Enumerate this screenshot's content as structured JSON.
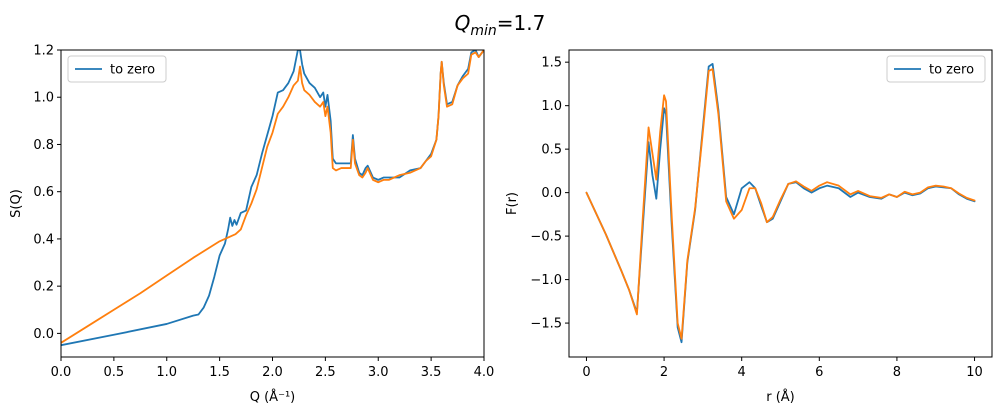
{
  "figure": {
    "suptitle_base": "Q",
    "suptitle_sub": "min",
    "suptitle_rest": "=1.7"
  },
  "colors": {
    "blue": "#1f77b4",
    "orange": "#ff7f0e",
    "axis": "#000000",
    "legend_border": "#cccccc"
  },
  "chart_data": [
    {
      "type": "line",
      "xlabel": "Q (Å⁻¹)",
      "ylabel": "S(Q)",
      "xlim": [
        0,
        4.0
      ],
      "ylim": [
        -0.1,
        1.2
      ],
      "xticks": [
        0.0,
        0.5,
        1.0,
        1.5,
        2.0,
        2.5,
        3.0,
        3.5,
        4.0
      ],
      "xtick_labels": [
        "0.0",
        "0.5",
        "1.0",
        "1.5",
        "2.0",
        "2.5",
        "3.0",
        "3.5",
        "4.0"
      ],
      "yticks": [
        0.0,
        0.2,
        0.4,
        0.6,
        0.8,
        1.0,
        1.2
      ],
      "ytick_labels": [
        "0.0",
        "0.2",
        "0.4",
        "0.6",
        "0.8",
        "1.0",
        "1.2"
      ],
      "grid": false,
      "legend": {
        "placement": "upper-left",
        "entries": [
          "to zero"
        ]
      },
      "series": [
        {
          "name": "to zero",
          "color": "#1f77b4",
          "x": [
            0.0,
            0.5,
            1.0,
            1.25,
            1.3,
            1.35,
            1.4,
            1.45,
            1.5,
            1.55,
            1.58,
            1.6,
            1.62,
            1.64,
            1.66,
            1.7,
            1.75,
            1.8,
            1.85,
            1.9,
            1.95,
            2.0,
            2.05,
            2.1,
            2.15,
            2.2,
            2.24,
            2.26,
            2.28,
            2.3,
            2.35,
            2.4,
            2.45,
            2.48,
            2.5,
            2.52,
            2.55,
            2.57,
            2.6,
            2.65,
            2.7,
            2.74,
            2.76,
            2.78,
            2.82,
            2.85,
            2.88,
            2.9,
            2.95,
            3.0,
            3.05,
            3.1,
            3.2,
            3.3,
            3.4,
            3.45,
            3.5,
            3.55,
            3.57,
            3.59,
            3.6,
            3.62,
            3.65,
            3.7,
            3.75,
            3.8,
            3.85,
            3.88,
            3.92,
            3.95,
            4.0
          ],
          "y": [
            -0.05,
            -0.006,
            0.04,
            0.075,
            0.08,
            0.11,
            0.16,
            0.24,
            0.33,
            0.38,
            0.44,
            0.49,
            0.455,
            0.48,
            0.46,
            0.51,
            0.52,
            0.62,
            0.67,
            0.76,
            0.84,
            0.92,
            1.02,
            1.03,
            1.06,
            1.11,
            1.2,
            1.2,
            1.14,
            1.1,
            1.06,
            1.04,
            1.0,
            1.02,
            0.96,
            1.01,
            0.9,
            0.74,
            0.72,
            0.72,
            0.72,
            0.72,
            0.84,
            0.74,
            0.68,
            0.67,
            0.7,
            0.71,
            0.66,
            0.65,
            0.66,
            0.66,
            0.66,
            0.69,
            0.7,
            0.73,
            0.76,
            0.82,
            0.92,
            1.1,
            1.15,
            1.06,
            0.97,
            0.98,
            1.05,
            1.09,
            1.12,
            1.19,
            1.2,
            1.17,
            1.2
          ]
        },
        {
          "name": "",
          "color": "#ff7f0e",
          "x": [
            0.0,
            0.25,
            0.5,
            0.75,
            1.0,
            1.25,
            1.5,
            1.6,
            1.65,
            1.7,
            1.75,
            1.8,
            1.85,
            1.9,
            1.95,
            2.0,
            2.05,
            2.1,
            2.15,
            2.2,
            2.24,
            2.26,
            2.28,
            2.3,
            2.35,
            2.4,
            2.45,
            2.48,
            2.5,
            2.52,
            2.55,
            2.57,
            2.6,
            2.65,
            2.7,
            2.74,
            2.76,
            2.78,
            2.82,
            2.85,
            2.88,
            2.9,
            2.95,
            3.0,
            3.05,
            3.1,
            3.2,
            3.3,
            3.4,
            3.45,
            3.5,
            3.55,
            3.57,
            3.59,
            3.6,
            3.62,
            3.65,
            3.7,
            3.75,
            3.8,
            3.85,
            3.88,
            3.92,
            3.95,
            4.0
          ],
          "y": [
            -0.04,
            0.03,
            0.1,
            0.17,
            0.245,
            0.32,
            0.39,
            0.41,
            0.42,
            0.44,
            0.5,
            0.55,
            0.61,
            0.7,
            0.79,
            0.85,
            0.93,
            0.96,
            1.0,
            1.05,
            1.07,
            1.13,
            1.06,
            1.03,
            1.01,
            0.98,
            0.96,
            0.98,
            0.92,
            0.96,
            0.85,
            0.7,
            0.69,
            0.7,
            0.7,
            0.7,
            0.82,
            0.72,
            0.67,
            0.66,
            0.68,
            0.7,
            0.65,
            0.64,
            0.65,
            0.65,
            0.67,
            0.68,
            0.7,
            0.73,
            0.75,
            0.82,
            0.92,
            1.1,
            1.15,
            1.05,
            0.96,
            0.97,
            1.05,
            1.08,
            1.1,
            1.18,
            1.19,
            1.17,
            1.2
          ]
        }
      ]
    },
    {
      "type": "line",
      "xlabel": "r (Å)",
      "ylabel": "F(r)",
      "xlim": [
        -0.45,
        10.45
      ],
      "ylim": [
        -1.89,
        1.64
      ],
      "xticks": [
        0,
        2,
        4,
        6,
        8,
        10
      ],
      "xtick_labels": [
        "0",
        "2",
        "4",
        "6",
        "8",
        "10"
      ],
      "yticks": [
        -1.5,
        -1.0,
        -0.5,
        0.0,
        0.5,
        1.0,
        1.5
      ],
      "ytick_labels": [
        "−1.5",
        "−1.0",
        "−0.5",
        "0.0",
        "0.5",
        "1.0",
        "1.5"
      ],
      "grid": false,
      "legend": {
        "placement": "upper-right",
        "entries": [
          "to zero"
        ]
      },
      "series": [
        {
          "name": "to zero",
          "color": "#1f77b4",
          "x": [
            0.0,
            0.5,
            0.9,
            1.1,
            1.3,
            1.45,
            1.6,
            1.7,
            1.8,
            1.9,
            2.0,
            2.05,
            2.2,
            2.35,
            2.45,
            2.6,
            2.8,
            3.0,
            3.15,
            3.25,
            3.4,
            3.6,
            3.8,
            4.0,
            4.2,
            4.35,
            4.5,
            4.65,
            4.8,
            5.0,
            5.2,
            5.4,
            5.6,
            5.8,
            6.0,
            6.2,
            6.5,
            6.8,
            7.0,
            7.3,
            7.6,
            7.8,
            8.0,
            8.2,
            8.4,
            8.6,
            8.8,
            9.0,
            9.2,
            9.4,
            9.6,
            9.8,
            10.0
          ],
          "y": [
            0.0,
            -0.48,
            -0.9,
            -1.12,
            -1.38,
            -0.4,
            0.58,
            0.2,
            -0.07,
            0.5,
            0.97,
            0.9,
            -0.4,
            -1.55,
            -1.72,
            -0.8,
            -0.2,
            0.75,
            1.45,
            1.48,
            0.95,
            -0.05,
            -0.25,
            0.05,
            0.12,
            0.05,
            -0.15,
            -0.34,
            -0.3,
            -0.1,
            0.1,
            0.12,
            0.05,
            0.0,
            0.05,
            0.08,
            0.05,
            -0.05,
            0.0,
            -0.05,
            -0.07,
            -0.02,
            -0.05,
            0.0,
            -0.03,
            -0.01,
            0.05,
            0.07,
            0.06,
            0.05,
            -0.02,
            -0.07,
            -0.1
          ]
        },
        {
          "name": "",
          "color": "#ff7f0e",
          "x": [
            0.0,
            0.5,
            0.9,
            1.1,
            1.3,
            1.45,
            1.6,
            1.7,
            1.8,
            1.9,
            2.0,
            2.05,
            2.2,
            2.35,
            2.45,
            2.6,
            2.8,
            3.0,
            3.15,
            3.25,
            3.4,
            3.6,
            3.8,
            4.0,
            4.2,
            4.35,
            4.5,
            4.65,
            4.8,
            5.0,
            5.2,
            5.4,
            5.6,
            5.8,
            6.0,
            6.2,
            6.5,
            6.8,
            7.0,
            7.3,
            7.6,
            7.8,
            8.0,
            8.2,
            8.4,
            8.6,
            8.8,
            9.0,
            9.2,
            9.4,
            9.6,
            9.8,
            10.0
          ],
          "y": [
            0.0,
            -0.48,
            -0.9,
            -1.12,
            -1.4,
            -0.3,
            0.75,
            0.45,
            0.15,
            0.7,
            1.12,
            1.05,
            -0.3,
            -1.5,
            -1.68,
            -0.78,
            -0.18,
            0.7,
            1.4,
            1.42,
            0.9,
            -0.1,
            -0.3,
            -0.2,
            0.05,
            0.05,
            -0.12,
            -0.34,
            -0.28,
            -0.08,
            0.1,
            0.13,
            0.07,
            0.02,
            0.08,
            0.12,
            0.08,
            -0.02,
            0.02,
            -0.04,
            -0.06,
            -0.02,
            -0.05,
            0.01,
            -0.02,
            0.0,
            0.06,
            0.08,
            0.07,
            0.05,
            -0.01,
            -0.06,
            -0.09
          ]
        }
      ]
    }
  ]
}
